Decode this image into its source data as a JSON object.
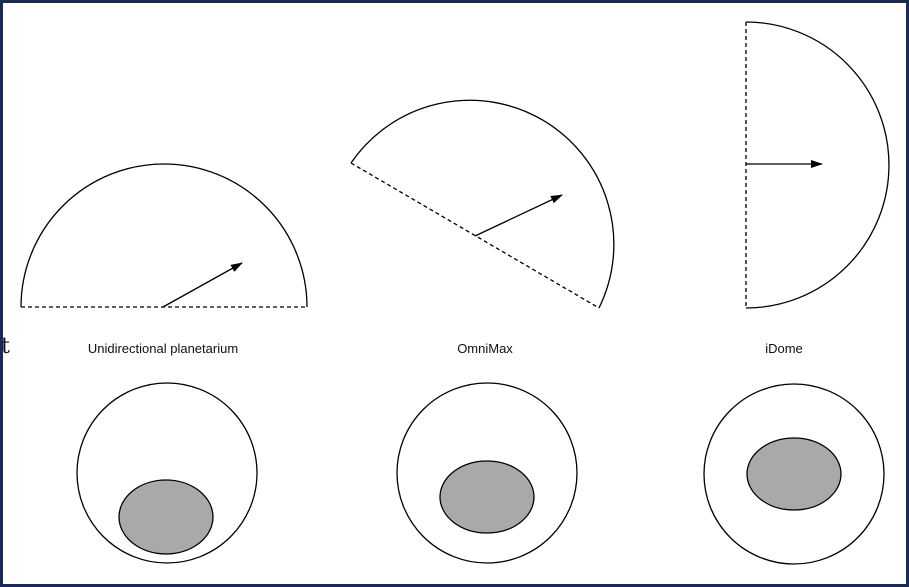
{
  "labels": {
    "unidirectional": "Unidirectional planetarium",
    "omnimax": "OmniMax",
    "idome": "iDome",
    "stray_glyph": "t"
  },
  "colors": {
    "stroke": "#000000",
    "fill_shaded": "#a9a9a9",
    "frame": "#1a2a55",
    "background": "#ffffff"
  }
}
